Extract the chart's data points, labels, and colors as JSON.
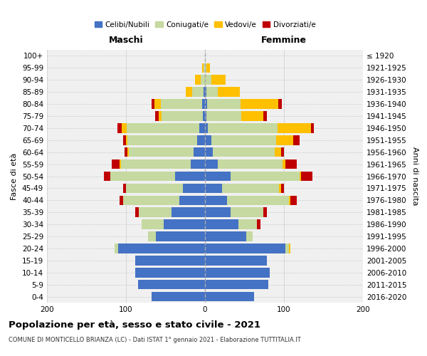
{
  "age_groups": [
    "0-4",
    "5-9",
    "10-14",
    "15-19",
    "20-24",
    "25-29",
    "30-34",
    "35-39",
    "40-44",
    "45-49",
    "50-54",
    "55-59",
    "60-64",
    "65-69",
    "70-74",
    "75-79",
    "80-84",
    "85-89",
    "90-94",
    "95-99",
    "100+"
  ],
  "birth_years": [
    "2016-2020",
    "2011-2015",
    "2006-2010",
    "2001-2005",
    "1996-2000",
    "1991-1995",
    "1986-1990",
    "1981-1985",
    "1976-1980",
    "1971-1975",
    "1966-1970",
    "1961-1965",
    "1956-1960",
    "1951-1955",
    "1946-1950",
    "1941-1945",
    "1936-1940",
    "1931-1935",
    "1926-1930",
    "1921-1925",
    "≤ 1920"
  ],
  "male": {
    "celibi": [
      68,
      85,
      88,
      88,
      110,
      62,
      52,
      42,
      32,
      28,
      38,
      18,
      14,
      10,
      7,
      3,
      4,
      2,
      0,
      0,
      0
    ],
    "coniugati": [
      0,
      0,
      0,
      0,
      4,
      10,
      28,
      42,
      72,
      72,
      82,
      88,
      82,
      88,
      92,
      52,
      52,
      14,
      5,
      2,
      0
    ],
    "vedovi": [
      0,
      0,
      0,
      0,
      0,
      0,
      0,
      0,
      0,
      0,
      0,
      2,
      2,
      2,
      6,
      4,
      8,
      8,
      8,
      2,
      0
    ],
    "divorziati": [
      0,
      0,
      0,
      0,
      0,
      0,
      0,
      4,
      4,
      4,
      8,
      10,
      4,
      4,
      6,
      4,
      4,
      0,
      0,
      0,
      0
    ]
  },
  "female": {
    "nubili": [
      62,
      80,
      82,
      78,
      102,
      52,
      42,
      32,
      28,
      22,
      32,
      16,
      10,
      8,
      4,
      2,
      3,
      2,
      0,
      0,
      0
    ],
    "coniugate": [
      0,
      0,
      0,
      0,
      4,
      8,
      24,
      42,
      78,
      72,
      88,
      82,
      78,
      82,
      88,
      44,
      42,
      14,
      8,
      2,
      0
    ],
    "vedove": [
      0,
      0,
      0,
      0,
      2,
      0,
      0,
      0,
      2,
      2,
      2,
      4,
      8,
      22,
      42,
      28,
      48,
      28,
      18,
      4,
      0
    ],
    "divorziate": [
      0,
      0,
      0,
      0,
      0,
      0,
      4,
      4,
      8,
      4,
      14,
      14,
      4,
      8,
      4,
      4,
      4,
      0,
      0,
      0,
      0
    ]
  },
  "colors": {
    "celibi": "#4472C4",
    "coniugati": "#c5d9a0",
    "vedovi": "#ffc000",
    "divorziati": "#c00000"
  },
  "xlim": 200,
  "title": "Popolazione per età, sesso e stato civile - 2021",
  "subtitle": "COMUNE DI MONTICELLO BRIANZA (LC) - Dati ISTAT 1° gennaio 2021 - Elaborazione TUTTITALIA.IT",
  "xlabel_left": "Maschi",
  "xlabel_right": "Femmine",
  "ylabel_left": "Fasce di età",
  "ylabel_right": "Anni di nascita",
  "bg_color": "#f0f0f0",
  "bar_height": 0.8
}
